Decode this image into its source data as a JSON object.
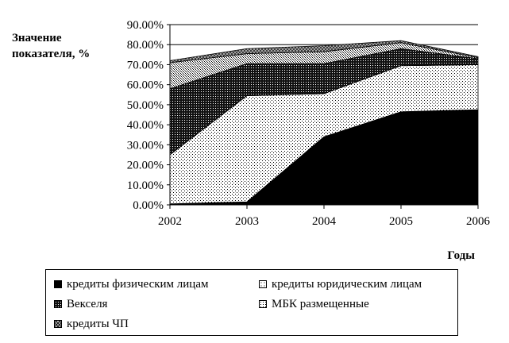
{
  "chart_data": {
    "type": "area",
    "stacked": true,
    "ylabel": "Значение показателя, %",
    "xlabel": "Годы",
    "x": [
      "2002",
      "2003",
      "2004",
      "2005",
      "2006"
    ],
    "ylim": [
      0,
      90
    ],
    "yticks": [
      "0.00%",
      "10.00%",
      "20.00%",
      "30.00%",
      "40.00%",
      "50.00%",
      "60.00%",
      "70.00%",
      "80.00%",
      "90.00%"
    ],
    "grid_lines": [
      80,
      90
    ],
    "legend_position": "bottom",
    "series": [
      {
        "name": "кредиты физическим лицам",
        "values": [
          0.5,
          1.5,
          34,
          46.5,
          47.5
        ],
        "pattern": "solid",
        "color": "#000000"
      },
      {
        "name": "кредиты юридическим лицам",
        "values": [
          24.5,
          53,
          21.5,
          23,
          22.5
        ],
        "pattern": "sparse-dots",
        "color": "#ffffff"
      },
      {
        "name": "Векселя",
        "values": [
          33,
          16,
          15,
          8.5,
          3
        ],
        "pattern": "dense-dark",
        "color": "#1a1a1a"
      },
      {
        "name": "МБК размещенные",
        "values": [
          13,
          5,
          6,
          3,
          0.5
        ],
        "pattern": "medium-dots",
        "color": "#d0d0d0"
      },
      {
        "name": "кредиты ЧП",
        "values": [
          1,
          2.5,
          3,
          1,
          0.5
        ],
        "pattern": "crosshatch",
        "color": "#808080"
      }
    ]
  }
}
